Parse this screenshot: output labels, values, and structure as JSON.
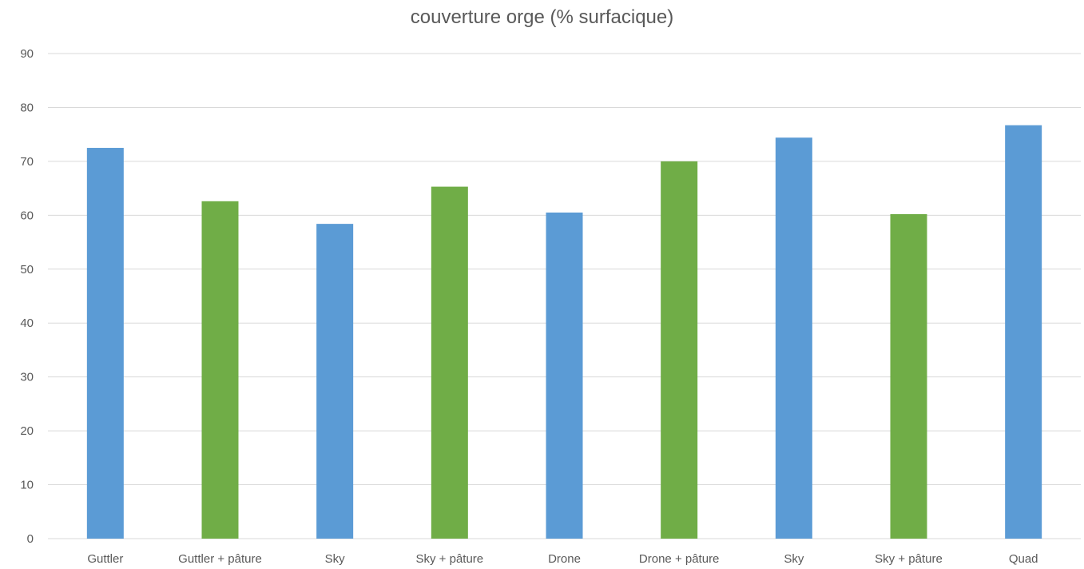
{
  "chart_data": {
    "type": "bar",
    "title": "couverture orge (% surfacique)",
    "categories": [
      "Guttler",
      "Guttler + pâture",
      "Sky",
      "Sky + pâture",
      "Drone",
      "Drone + pâture",
      "Sky",
      "Sky + pâture",
      "Quad"
    ],
    "values": [
      72.5,
      62.6,
      58.4,
      65.3,
      60.5,
      70.0,
      74.4,
      60.2,
      76.7
    ],
    "bar_colors": [
      "#5b9bd5",
      "#70ad47",
      "#5b9bd5",
      "#70ad47",
      "#5b9bd5",
      "#70ad47",
      "#5b9bd5",
      "#70ad47",
      "#5b9bd5"
    ],
    "ylim": [
      0,
      90
    ],
    "yticks": [
      "0",
      "10",
      "20",
      "30",
      "40",
      "50",
      "60",
      "70",
      "80",
      "90"
    ],
    "xlabel": "",
    "ylabel": "",
    "grid": true,
    "legend": "none"
  }
}
